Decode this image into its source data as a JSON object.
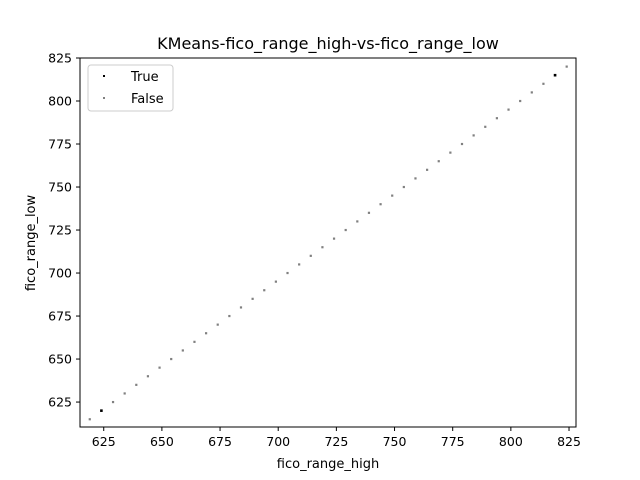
{
  "chart_data": {
    "type": "scatter",
    "title": "KMeans-fico_range_high-vs-fico_range_low",
    "xlabel": "fico_range_high",
    "ylabel": "fico_range_low",
    "xlim": [
      614.8,
      828.0
    ],
    "ylim": [
      610.5,
      825.0
    ],
    "xticks": [
      625,
      650,
      675,
      700,
      725,
      750,
      775,
      800,
      825
    ],
    "yticks": [
      625,
      650,
      675,
      700,
      725,
      750,
      775,
      800,
      825
    ],
    "grid": false,
    "legend_placement": "top-left",
    "series": [
      {
        "name": "True",
        "color": "#000000",
        "points": [
          [
            624,
            620
          ],
          [
            819,
            815
          ]
        ]
      },
      {
        "name": "False",
        "color": "#808080",
        "points": [
          [
            619,
            615
          ],
          [
            629,
            625
          ],
          [
            634,
            630
          ],
          [
            639,
            635
          ],
          [
            644,
            640
          ],
          [
            649,
            645
          ],
          [
            654,
            650
          ],
          [
            659,
            655
          ],
          [
            664,
            660
          ],
          [
            669,
            665
          ],
          [
            674,
            670
          ],
          [
            679,
            675
          ],
          [
            684,
            680
          ],
          [
            689,
            685
          ],
          [
            694,
            690
          ],
          [
            699,
            695
          ],
          [
            704,
            700
          ],
          [
            709,
            705
          ],
          [
            714,
            710
          ],
          [
            719,
            715
          ],
          [
            724,
            720
          ],
          [
            729,
            725
          ],
          [
            734,
            730
          ],
          [
            739,
            735
          ],
          [
            744,
            740
          ],
          [
            749,
            745
          ],
          [
            754,
            750
          ],
          [
            759,
            755
          ],
          [
            764,
            760
          ],
          [
            769,
            765
          ],
          [
            774,
            770
          ],
          [
            779,
            775
          ],
          [
            784,
            780
          ],
          [
            789,
            785
          ],
          [
            794,
            790
          ],
          [
            799,
            795
          ],
          [
            804,
            800
          ],
          [
            809,
            805
          ],
          [
            814,
            810
          ],
          [
            819,
            815
          ],
          [
            824,
            820
          ]
        ]
      }
    ]
  }
}
